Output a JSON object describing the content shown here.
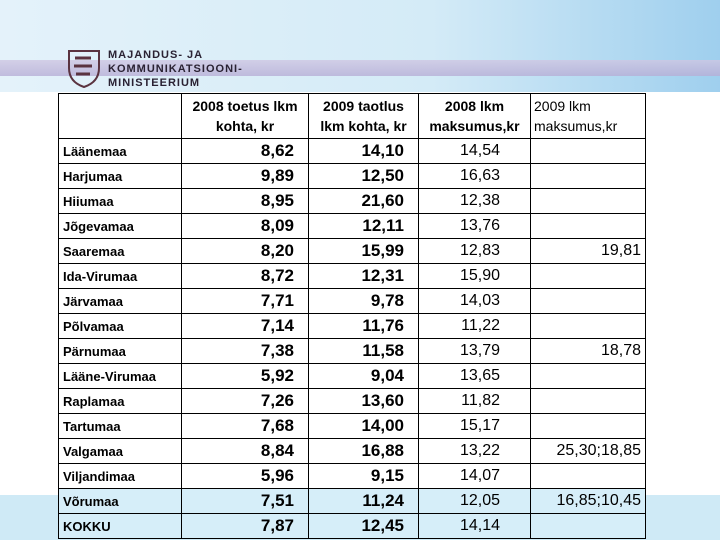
{
  "header": {
    "logo_lines": [
      "MAJANDUS- JA",
      "KOMMUNIKATSIOONI-",
      "MINISTEERIUM"
    ]
  },
  "table": {
    "columns": [
      [
        "2008 toetus lkm",
        "kohta, kr"
      ],
      [
        "2009 taotlus",
        "lkm kohta, kr"
      ],
      [
        "2008 lkm",
        "maksumus,kr"
      ],
      [
        "2009 lkm",
        "maksumus,kr"
      ]
    ],
    "rows": [
      [
        "Läänemaa",
        "8,62",
        "14,10",
        "14,54",
        null
      ],
      [
        "Harjumaa",
        "9,89",
        "12,50",
        "16,63",
        null
      ],
      [
        "Hiiumaa",
        "8,95",
        "21,60",
        "12,38",
        null
      ],
      [
        "Jõgevamaa",
        "8,09",
        "12,11",
        "13,76",
        null
      ],
      [
        "Saaremaa",
        "8,20",
        "15,99",
        "12,83",
        "19,81"
      ],
      [
        "Ida-Virumaa",
        "8,72",
        "12,31",
        "15,90",
        null
      ],
      [
        "Järvamaa",
        "7,71",
        "9,78",
        "14,03",
        null
      ],
      [
        "Põlvamaa",
        "7,14",
        "11,76",
        "11,22",
        null
      ],
      [
        "Pärnumaa",
        "7,38",
        "11,58",
        "13,79",
        "18,78"
      ],
      [
        "Lääne-Virumaa",
        "5,92",
        "9,04",
        "13,65",
        null
      ],
      [
        "Raplamaa",
        "7,26",
        "13,60",
        "11,82",
        null
      ],
      [
        "Tartumaa",
        "7,68",
        "14,00",
        "15,17",
        null
      ],
      [
        "Valgamaa",
        "8,84",
        "16,88",
        "13,22",
        "25,30;18,85"
      ],
      [
        "Viljandimaa",
        "5,96",
        "9,15",
        "14,07",
        null
      ],
      [
        "Võrumaa",
        "7,51",
        "11,24",
        "12,05",
        "16,85;10,45"
      ],
      [
        "KOKKU",
        "7,87",
        "12,45",
        "14,14",
        null
      ]
    ]
  }
}
